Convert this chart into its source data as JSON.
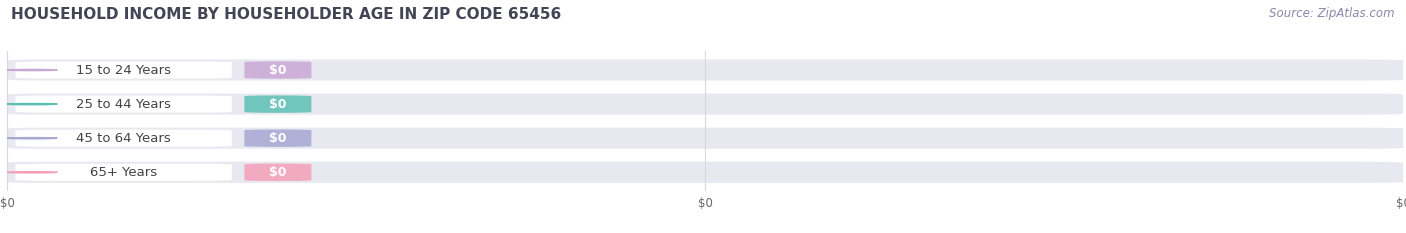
{
  "title": "HOUSEHOLD INCOME BY HOUSEHOLDER AGE IN ZIP CODE 65456",
  "source": "Source: ZipAtlas.com",
  "categories": [
    "15 to 24 Years",
    "25 to 44 Years",
    "45 to 64 Years",
    "65+ Years"
  ],
  "values": [
    0,
    0,
    0,
    0
  ],
  "bar_colors": [
    "#c9a8d4",
    "#5bbfb5",
    "#a8a8d4",
    "#f4a0b8"
  ],
  "bar_bg_color": "#e8e8f0",
  "background_color": "#ffffff",
  "grid_color": "#d8d8e0",
  "title_fontsize": 11,
  "source_fontsize": 8.5,
  "tick_label_fontsize": 8.5,
  "bar_label_fontsize": 9,
  "category_fontsize": 9.5
}
